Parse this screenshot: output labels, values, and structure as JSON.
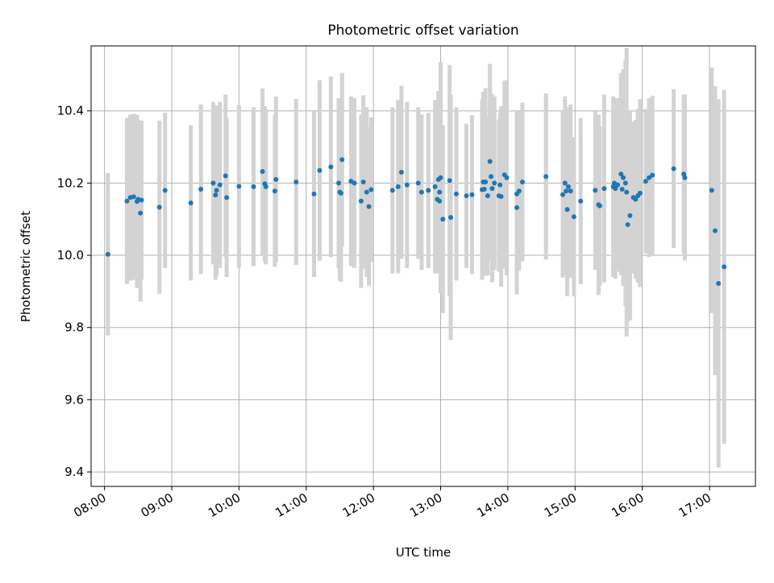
{
  "chart_data": {
    "type": "scatter",
    "title": "Photometric offset variation",
    "xlabel": "UTC time",
    "ylabel": "Photometric offset",
    "x_unit": "time of day (UTC)",
    "xlim": [
      "07:48",
      "17:41"
    ],
    "ylim": [
      9.36,
      10.58
    ],
    "x_ticks": [
      "08:00",
      "09:00",
      "10:00",
      "11:00",
      "12:00",
      "13:00",
      "14:00",
      "15:00",
      "16:00",
      "17:00"
    ],
    "y_ticks": [
      "9.4",
      "9.6",
      "9.8",
      "10.0",
      "10.2",
      "10.4"
    ],
    "grid": true,
    "marker_color": "#1f77b4",
    "errorbar_color": "#d3d3d3",
    "series": [
      {
        "x": [
          "08:03",
          "08:20",
          "08:23",
          "08:26",
          "08:29",
          "08:30",
          "08:32",
          "08:33",
          "08:49",
          "08:54",
          "09:17",
          "09:26",
          "09:37",
          "09:39",
          "09:40",
          "09:43",
          "09:48",
          "09:49",
          "10:00",
          "10:13",
          "10:21",
          "10:23",
          "10:24",
          "10:32",
          "10:33",
          "10:51",
          "11:07",
          "11:12",
          "11:22",
          "11:29",
          "11:30",
          "11:31",
          "11:32",
          "11:40",
          "11:43",
          "11:49",
          "11:51",
          "11:54",
          "11:56",
          "11:58",
          "12:17",
          "12:22",
          "12:25",
          "12:30",
          "12:40",
          "12:43",
          "12:49",
          "12:55",
          "12:57",
          "12:58",
          "12:59",
          "12:59",
          "13:00",
          "13:02",
          "13:08",
          "13:09",
          "13:14",
          "13:23",
          "13:28",
          "13:37",
          "13:38",
          "13:39",
          "13:40",
          "13:42",
          "13:44",
          "13:45",
          "13:46",
          "13:48",
          "13:52",
          "13:53",
          "13:54",
          "13:57",
          "13:59",
          "14:08",
          "14:08",
          "14:10",
          "14:13",
          "14:34",
          "14:49",
          "14:51",
          "14:52",
          "14:53",
          "14:54",
          "14:56",
          "14:59",
          "15:05",
          "15:18",
          "15:21",
          "15:22",
          "15:26",
          "15:34",
          "15:35",
          "15:36",
          "15:38",
          "15:41",
          "15:42",
          "15:43",
          "15:45",
          "15:46",
          "15:47",
          "15:49",
          "15:52",
          "15:54",
          "15:56",
          "15:58",
          "16:03",
          "16:06",
          "16:09",
          "16:28",
          "16:37",
          "16:38",
          "17:02",
          "17:05",
          "17:08",
          "17:13"
        ],
        "y": [
          10.003,
          10.15,
          10.16,
          10.162,
          10.149,
          10.155,
          10.117,
          10.153,
          10.133,
          10.18,
          10.145,
          10.183,
          10.2,
          10.167,
          10.18,
          10.195,
          10.22,
          10.16,
          10.191,
          10.19,
          10.232,
          10.198,
          10.19,
          10.178,
          10.21,
          10.203,
          10.17,
          10.235,
          10.245,
          10.2,
          10.175,
          10.172,
          10.265,
          10.205,
          10.2,
          10.15,
          10.203,
          10.175,
          10.135,
          10.182,
          10.18,
          10.19,
          10.23,
          10.195,
          10.2,
          10.175,
          10.18,
          10.19,
          10.155,
          10.21,
          10.15,
          10.175,
          10.215,
          10.1,
          10.207,
          10.105,
          10.17,
          10.165,
          10.168,
          10.182,
          10.203,
          10.183,
          10.203,
          10.165,
          10.26,
          10.218,
          10.185,
          10.2,
          10.165,
          10.195,
          10.163,
          10.223,
          10.215,
          10.17,
          10.132,
          10.178,
          10.203,
          10.218,
          10.168,
          10.2,
          10.178,
          10.127,
          10.19,
          10.178,
          10.107,
          10.15,
          10.18,
          10.14,
          10.137,
          10.185,
          10.19,
          10.2,
          10.185,
          10.195,
          10.225,
          10.183,
          10.215,
          10.2,
          10.175,
          10.085,
          10.11,
          10.16,
          10.155,
          10.165,
          10.172,
          10.205,
          10.215,
          10.222,
          10.24,
          10.225,
          10.215,
          10.18,
          10.068,
          9.922,
          9.968
        ],
        "yerr": [
          0.225,
          0.23,
          0.23,
          0.23,
          0.24,
          0.22,
          0.245,
          0.22,
          0.24,
          0.215,
          0.215,
          0.235,
          0.225,
          0.235,
          0.235,
          0.23,
          0.225,
          0.22,
          0.225,
          0.22,
          0.23,
          0.215,
          0.215,
          0.21,
          0.23,
          0.23,
          0.23,
          0.25,
          0.25,
          0.235,
          0.245,
          0.245,
          0.24,
          0.235,
          0.235,
          0.24,
          0.24,
          0.235,
          0.22,
          0.2,
          0.23,
          0.24,
          0.24,
          0.23,
          0.21,
          0.215,
          0.215,
          0.24,
          0.205,
          0.245,
          0.2,
          0.2,
          0.32,
          0.26,
          0.32,
          0.34,
          0.24,
          0.2,
          0.22,
          0.25,
          0.25,
          0.23,
          0.26,
          0.22,
          0.27,
          0.23,
          0.26,
          0.24,
          0.21,
          0.2,
          0.25,
          0.26,
          0.27,
          0.23,
          0.24,
          0.22,
          0.22,
          0.23,
          0.23,
          0.24,
          0.23,
          0.24,
          0.22,
          0.24,
          0.22,
          0.23,
          0.22,
          0.25,
          0.22,
          0.26,
          0.25,
          0.23,
          0.25,
          0.24,
          0.28,
          0.22,
          0.3,
          0.34,
          0.4,
          0.27,
          0.29,
          0.21,
          0.22,
          0.24,
          0.26,
          0.2,
          0.22,
          0.22,
          0.22,
          0.22,
          0.23,
          0.34,
          0.4,
          0.51,
          0.49
        ]
      }
    ]
  }
}
